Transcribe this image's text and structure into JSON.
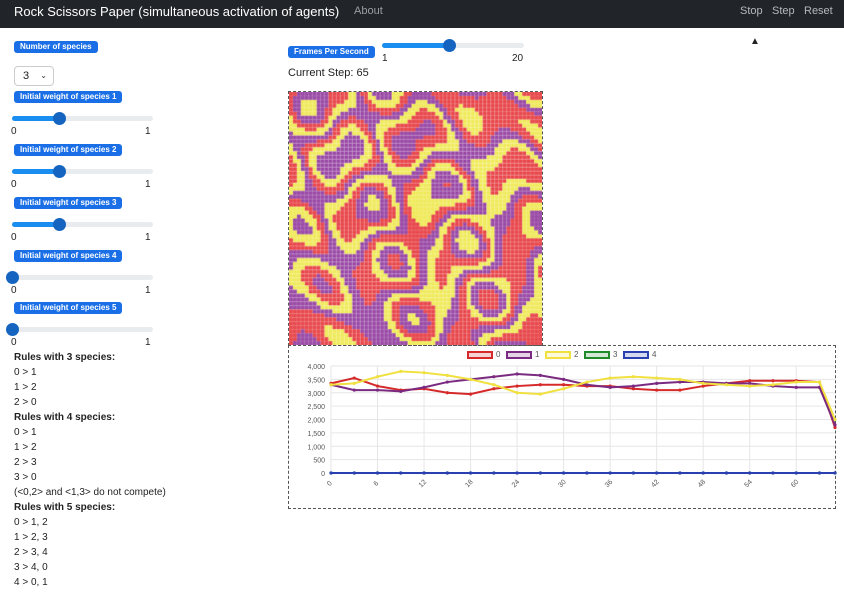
{
  "navbar": {
    "title": "Rock Scissors Paper (simultaneous activation of agents)",
    "about": "About",
    "stop": "Stop",
    "step": "Step",
    "reset": "Reset"
  },
  "controls": {
    "num_species_label": "Number of species",
    "num_species_value": "3",
    "weights": [
      {
        "label": "Initial weight of species 1",
        "value": 0.33,
        "min": "0",
        "max": "1"
      },
      {
        "label": "Initial weight of species 2",
        "value": 0.33,
        "min": "0",
        "max": "1"
      },
      {
        "label": "Initial weight of species 3",
        "value": 0.33,
        "min": "0",
        "max": "1"
      },
      {
        "label": "Initial weight of species 4",
        "value": 0,
        "min": "0",
        "max": "1"
      },
      {
        "label": "Initial weight of species 5",
        "value": 0,
        "min": "0",
        "max": "1"
      }
    ],
    "fps_label": "Frames Per Second",
    "fps_value": 10,
    "fps_min": "1",
    "fps_max": "20"
  },
  "status": {
    "current_step": "Current Step: 65"
  },
  "rules": {
    "three_heading": "Rules with 3 species:",
    "three": [
      "0 > 1",
      "1 > 2",
      "2 > 0"
    ],
    "four_heading": "Rules with 4 species:",
    "four": [
      "0 > 1",
      "1 > 2",
      "2 > 3",
      "3 > 0",
      "(<0,2> and <1,3> do not compete)"
    ],
    "five_heading": "Rules with 5 species:",
    "five": [
      "0 > 1, 2",
      "1 > 2, 3",
      "2 > 3, 4",
      "3 > 4, 0",
      "4 > 0, 1"
    ]
  },
  "grid_colors": {
    "species0": "#e8484c",
    "species1": "#9a4aa6",
    "species2": "#f0ea5c"
  },
  "chart_data": {
    "type": "line",
    "x": [
      0,
      3,
      6,
      9,
      12,
      15,
      18,
      21,
      24,
      27,
      30,
      33,
      36,
      39,
      42,
      45,
      48,
      51,
      54,
      57,
      60,
      63,
      65
    ],
    "xticks": [
      "0",
      "6",
      "12",
      "18",
      "24",
      "30",
      "36",
      "42",
      "48",
      "54",
      "60"
    ],
    "yticks": [
      "0",
      "500",
      "1,000",
      "1,500",
      "2,000",
      "2,500",
      "3,000",
      "3,500",
      "4,000"
    ],
    "ylim": [
      0,
      4000
    ],
    "xlim": [
      0,
      65
    ],
    "legend_placement": "top",
    "series": [
      {
        "name": "0",
        "color": "#d62a2a",
        "values": [
          3350,
          3550,
          3250,
          3100,
          3150,
          3000,
          2950,
          3150,
          3250,
          3300,
          3300,
          3250,
          3250,
          3150,
          3100,
          3100,
          3250,
          3350,
          3450,
          3450,
          3450,
          3400,
          1700
        ]
      },
      {
        "name": "1",
        "color": "#7a2a80",
        "values": [
          3300,
          3100,
          3100,
          3050,
          3200,
          3400,
          3500,
          3600,
          3700,
          3650,
          3500,
          3300,
          3200,
          3250,
          3350,
          3400,
          3400,
          3350,
          3350,
          3250,
          3200,
          3200,
          1800
        ]
      },
      {
        "name": "2",
        "color": "#f0e040",
        "values": [
          3300,
          3350,
          3600,
          3800,
          3750,
          3650,
          3500,
          3300,
          3000,
          2950,
          3150,
          3400,
          3550,
          3600,
          3550,
          3500,
          3350,
          3300,
          3250,
          3300,
          3400,
          3400,
          2000
        ]
      },
      {
        "name": "3",
        "color": "#1f8a2a",
        "values": [
          0,
          0,
          0,
          0,
          0,
          0,
          0,
          0,
          0,
          0,
          0,
          0,
          0,
          0,
          0,
          0,
          0,
          0,
          0,
          0,
          0,
          0,
          0
        ]
      },
      {
        "name": "4",
        "color": "#2a3fb0",
        "values": [
          0,
          0,
          0,
          0,
          0,
          0,
          0,
          0,
          0,
          0,
          0,
          0,
          0,
          0,
          0,
          0,
          0,
          0,
          0,
          0,
          0,
          0,
          0
        ]
      }
    ]
  }
}
